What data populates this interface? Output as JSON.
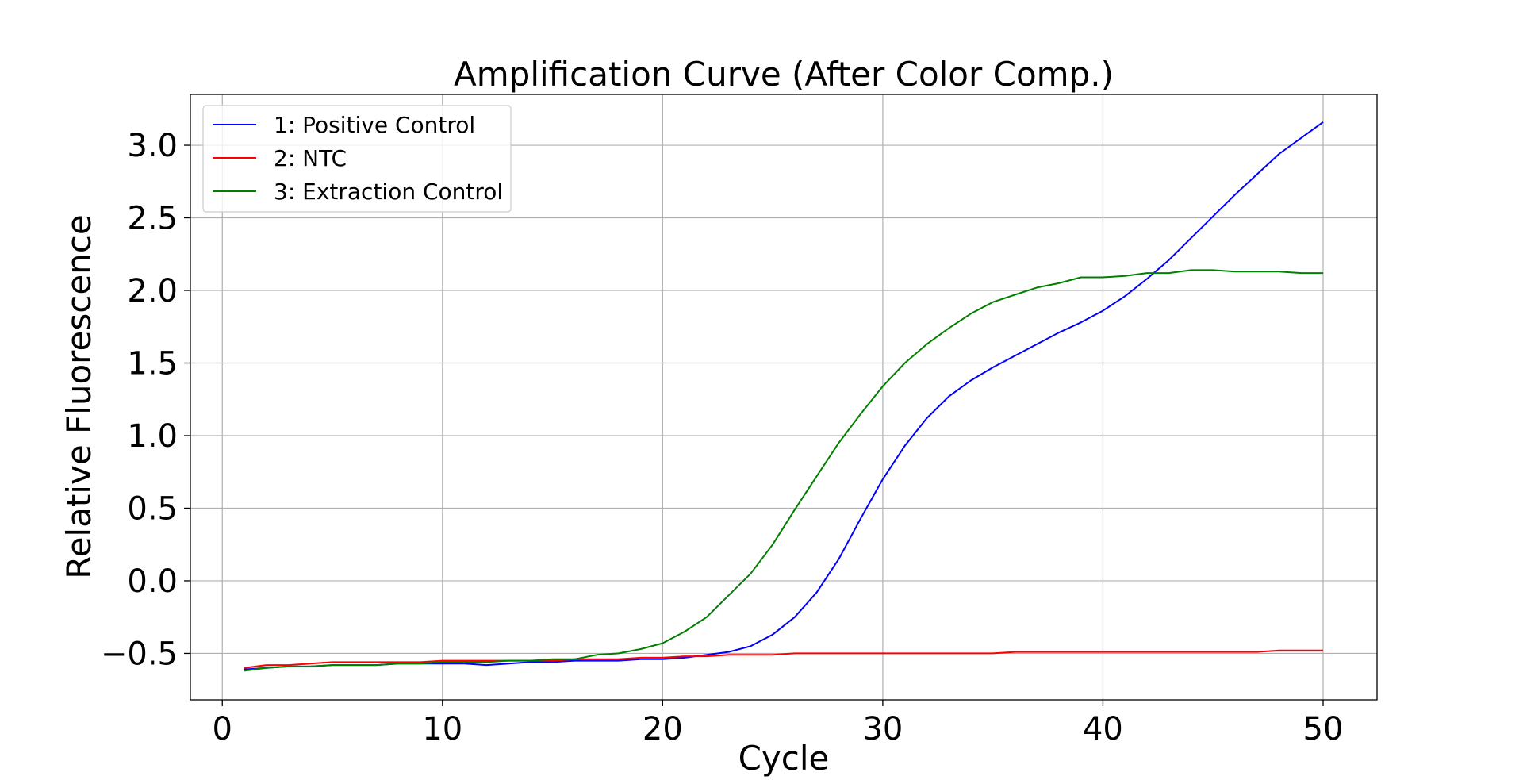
{
  "chart_data": {
    "type": "line",
    "title": "Amplification Curve (After Color Comp.)",
    "xlabel": "Cycle",
    "ylabel": "Relative Fluorescence",
    "xlim": [
      -1.45,
      52.45
    ],
    "ylim": [
      -0.82,
      3.35
    ],
    "xticks": [
      0,
      10,
      20,
      30,
      40,
      50
    ],
    "yticks": [
      -0.5,
      0.0,
      0.5,
      1.0,
      1.5,
      2.0,
      2.5,
      3.0
    ],
    "xtick_labels": [
      "0",
      "10",
      "20",
      "30",
      "40",
      "50"
    ],
    "ytick_labels": [
      "−0.5",
      "0.0",
      "0.5",
      "1.0",
      "1.5",
      "2.0",
      "2.5",
      "3.0"
    ],
    "grid": true,
    "legend_position": "top-left",
    "x": [
      1,
      2,
      3,
      4,
      5,
      6,
      7,
      8,
      9,
      10,
      11,
      12,
      13,
      14,
      15,
      16,
      17,
      18,
      19,
      20,
      21,
      22,
      23,
      24,
      25,
      26,
      27,
      28,
      29,
      30,
      31,
      32,
      33,
      34,
      35,
      36,
      37,
      38,
      39,
      40,
      41,
      42,
      43,
      44,
      45,
      46,
      47,
      48,
      49,
      50
    ],
    "series": [
      {
        "name": "1: Positive Control",
        "color": "#0000ff",
        "values": [
          -0.61,
          -0.6,
          -0.59,
          -0.59,
          -0.58,
          -0.58,
          -0.58,
          -0.57,
          -0.57,
          -0.57,
          -0.57,
          -0.58,
          -0.57,
          -0.56,
          -0.56,
          -0.55,
          -0.55,
          -0.55,
          -0.54,
          -0.54,
          -0.53,
          -0.51,
          -0.49,
          -0.45,
          -0.37,
          -0.25,
          -0.08,
          0.15,
          0.43,
          0.7,
          0.93,
          1.12,
          1.27,
          1.38,
          1.47,
          1.55,
          1.63,
          1.71,
          1.78,
          1.86,
          1.96,
          2.08,
          2.21,
          2.36,
          2.51,
          2.66,
          2.8,
          2.94,
          3.05,
          3.16
        ]
      },
      {
        "name": "2: NTC",
        "color": "#ff0000",
        "values": [
          -0.6,
          -0.58,
          -0.58,
          -0.57,
          -0.56,
          -0.56,
          -0.56,
          -0.56,
          -0.56,
          -0.55,
          -0.55,
          -0.55,
          -0.55,
          -0.55,
          -0.55,
          -0.54,
          -0.54,
          -0.54,
          -0.53,
          -0.53,
          -0.52,
          -0.52,
          -0.51,
          -0.51,
          -0.51,
          -0.5,
          -0.5,
          -0.5,
          -0.5,
          -0.5,
          -0.5,
          -0.5,
          -0.5,
          -0.5,
          -0.5,
          -0.49,
          -0.49,
          -0.49,
          -0.49,
          -0.49,
          -0.49,
          -0.49,
          -0.49,
          -0.49,
          -0.49,
          -0.49,
          -0.49,
          -0.48,
          -0.48,
          -0.48
        ]
      },
      {
        "name": "3: Extraction Control",
        "color": "#008000",
        "values": [
          -0.62,
          -0.6,
          -0.59,
          -0.59,
          -0.58,
          -0.58,
          -0.58,
          -0.57,
          -0.57,
          -0.56,
          -0.56,
          -0.56,
          -0.55,
          -0.55,
          -0.54,
          -0.54,
          -0.51,
          -0.5,
          -0.47,
          -0.43,
          -0.35,
          -0.25,
          -0.1,
          0.05,
          0.25,
          0.49,
          0.72,
          0.95,
          1.15,
          1.34,
          1.5,
          1.63,
          1.74,
          1.84,
          1.92,
          1.97,
          2.02,
          2.05,
          2.09,
          2.09,
          2.1,
          2.12,
          2.12,
          2.14,
          2.14,
          2.13,
          2.13,
          2.13,
          2.12,
          2.12
        ]
      }
    ]
  }
}
